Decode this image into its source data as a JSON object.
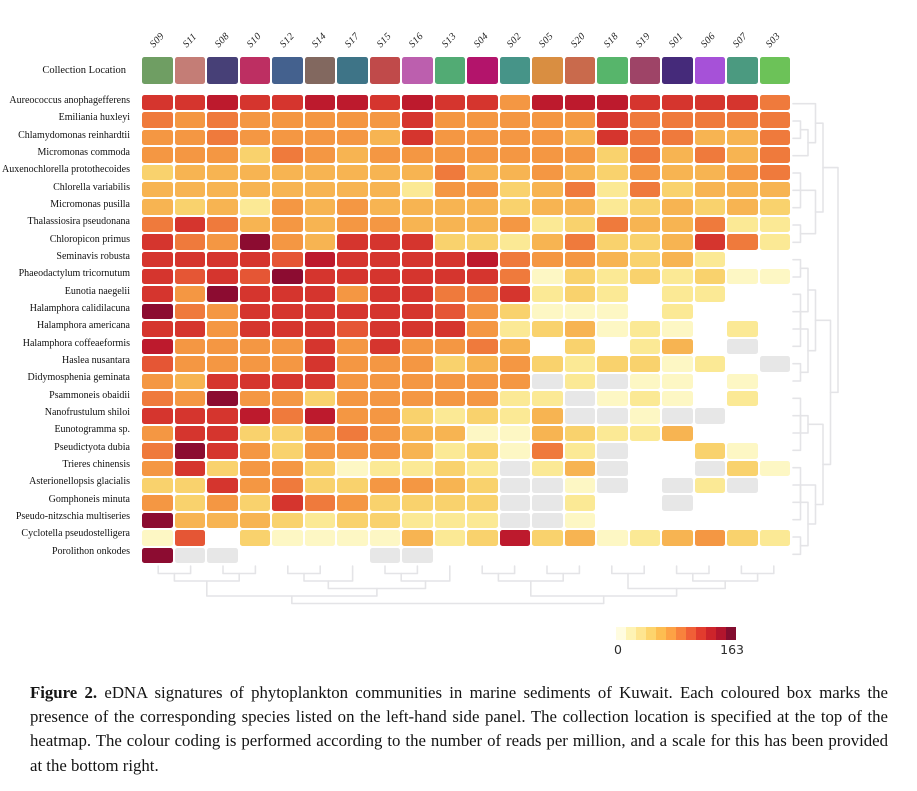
{
  "header": {
    "collection_location_label": "Collection Location",
    "columns": [
      "S09",
      "S11",
      "S08",
      "S10",
      "S12",
      "S14",
      "S17",
      "S15",
      "S16",
      "S13",
      "S04",
      "S02",
      "S05",
      "S20",
      "S18",
      "S19",
      "S01",
      "S06",
      "S07",
      "S03"
    ],
    "column_colors": [
      "#6f9e63",
      "#c47d76",
      "#474077",
      "#bd2f62",
      "#44618e",
      "#82685f",
      "#3e7487",
      "#c04a4a",
      "#bc5fae",
      "#52ab74",
      "#b3146b",
      "#469488",
      "#d98e41",
      "#c96a4c",
      "#57b56b",
      "#9e4467",
      "#452a7a",
      "#a651d8",
      "#4b9a80",
      "#6cc258"
    ]
  },
  "heatmap": {
    "species": [
      "Aureococcus anophagefferens",
      "Emiliania huxleyi",
      "Chlamydomonas reinhardtii",
      "Micromonas commoda",
      "Auxenochlorella protothecoides",
      "Chlorella variabilis",
      "Micromonas pusilla",
      "Thalassiosira pseudonana",
      "Chloropicon primus",
      "Seminavis robusta",
      "Phaeodactylum tricornutum",
      "Eunotia naegelii",
      "Halamphora calidilacuna",
      "Halamphora americana",
      "Halamphora coffeaeformis",
      "Haslea nusantara",
      "Didymosphenia geminata",
      "Psammoneis obaidii",
      "Nanofrustulum shiloi",
      "Eunotogramma sp.",
      "Pseudictyota dubia",
      "Trieres chinensis",
      "Asterionellopsis glacialis",
      "Gomphoneis minuta",
      "Pseudo-nitzschia multiseries",
      "Cyclotella pseudostelligera",
      "Porolithon onkodes"
    ],
    "palette": {
      "0": "#ffffff",
      "1": "#fdf7c4",
      "2": "#fbe995",
      "3": "#f9d26d",
      "4": "#f7b452",
      "5": "#f49743",
      "6": "#ef7a3c",
      "7": "#e55635",
      "8": "#d5352e",
      "9": "#bd1a2d",
      "A": "#8c0c31",
      "G": "#e7e7e7"
    },
    "rows_pattern": [
      "88988998988599988886",
      "65655555855555866666",
      "55655554855554866446",
      "55536545555555364646",
      "34444444464454354456",
      "44444444255346263444",
      "43425454444344234343",
      "68645455444523644622",
      "865A5488833246334862",
      "88887988889655434200",
      "8787A888888613232311",
      "85A88858866823202200",
      "A6588888875311102000",
      "88588878885234121020",
      "955558585564030240G0",
      "7555585553453233120G",
      "548888555555G2G11010",
      "65A5535555522G121020",
      "8889695532324GG1GG00",
      "58833565441143224000",
      "6A853555423162G00310",
      "58355312232G24G00G31",
      "33856335543GG1G0G2G0",
      "53538653333GG200G000",
      "A4443233222GG1000000",
      "17031111423934124532",
      "AGG0000GG00000000000"
    ]
  },
  "dendrograms": {
    "rows_tree": [
      [
        [
          0,
          [
            [
              1,
              2
            ],
            3
          ]
        ],
        [
          [
            [
              4,
              6
            ],
            5
          ],
          [
            7,
            8
          ]
        ]
      ],
      [
        [
          [
            [
              9,
              10
            ],
            [
              11,
              13
            ]
          ],
          [
            [
              12,
              14
            ],
            [
              15,
              16
            ]
          ]
        ],
        [
          [
            [
              17,
              19
            ],
            [
              18,
              20
            ]
          ],
          [
            [
              21,
              23
            ],
            [
              [
                22,
                24
              ],
              [
                25,
                26
              ]
            ]
          ]
        ]
      ]
    ],
    "cols_tree": [
      [
        [
          [
            0,
            1
          ],
          [
            2,
            3
          ]
        ],
        [
          [
            [
              4,
              5
            ],
            6
          ],
          [
            [
              7,
              8
            ],
            9
          ]
        ]
      ],
      [
        [
          [
            10,
            11
          ],
          [
            12,
            13
          ]
        ],
        [
          [
            14,
            15
          ],
          [
            [
              16,
              17
            ],
            [
              18,
              19
            ]
          ]
        ]
      ]
    ]
  },
  "legend": {
    "min": "0",
    "max": "163",
    "colors": [
      "#fffce0",
      "#fef3b4",
      "#fee590",
      "#fdd46c",
      "#fdbd51",
      "#fda245",
      "#f8823d",
      "#f05f37",
      "#e23c2e",
      "#cd242b",
      "#b2152d",
      "#830d2f"
    ]
  },
  "caption": {
    "label": "Figure 2.",
    "text": " eDNA signatures of phytoplankton communities in marine sediments of Kuwait. Each coloured box marks the presence of the corresponding species listed on the left-hand side panel. The collection location is specified at the top of the heatmap. The colour coding is performed according to the number of reads per million, and a scale for this has been provided at the bottom right."
  },
  "chart_data": {
    "type": "heatmap",
    "title": "eDNA signatures of phytoplankton communities in marine sediments of Kuwait",
    "x_categories": [
      "S09",
      "S11",
      "S08",
      "S10",
      "S12",
      "S14",
      "S17",
      "S15",
      "S16",
      "S13",
      "S04",
      "S02",
      "S05",
      "S20",
      "S18",
      "S19",
      "S01",
      "S06",
      "S07",
      "S03"
    ],
    "y_categories": [
      "Aureococcus anophagefferens",
      "Emiliania huxleyi",
      "Chlamydomonas reinhardtii",
      "Micromonas commoda",
      "Auxenochlorella protothecoides",
      "Chlorella variabilis",
      "Micromonas pusilla",
      "Thalassiosira pseudonana",
      "Chloropicon primus",
      "Seminavis robusta",
      "Phaeodactylum tricornutum",
      "Eunotia naegelii",
      "Halamphora calidilacuna",
      "Halamphora americana",
      "Halamphora coffeaeformis",
      "Haslea nusantara",
      "Didymosphenia geminata",
      "Psammoneis obaidii",
      "Nanofrustulum shiloi",
      "Eunotogramma sp.",
      "Pseudictyota dubia",
      "Trieres chinensis",
      "Asterionellopsis glacialis",
      "Gomphoneis minuta",
      "Pseudo-nitzschia multiseries",
      "Cyclotella pseudostelligera",
      "Porolithon onkodes"
    ],
    "value_unit": "reads per million",
    "colorbar_range": [
      0,
      163
    ],
    "bucket_values": {
      "0": 0,
      "1": 8,
      "2": 22,
      "3": 40,
      "4": 55,
      "5": 72,
      "6": 88,
      "7": 102,
      "8": 120,
      "9": 140,
      "A": 160,
      "G": null
    },
    "matrix_buckets": [
      "88988998988599988886",
      "65655555855555866666",
      "55655554855554866446",
      "55536545555555364646",
      "34444444464454354456",
      "44444444255346263444",
      "43425454444344234343",
      "68645455444523644622",
      "865A5488833246334862",
      "88887988889655434200",
      "8787A888888613232311",
      "85A88858866823202200",
      "A6588888875311102000",
      "88588878885234121020",
      "955558585564030240G0",
      "7555585553453233120G",
      "548888555555G2G11010",
      "65A5535555522G121020",
      "8889695532324GG1GG00",
      "58833565441143224000",
      "6A853555423162G00310",
      "58355312232G24G00G31",
      "33856335543GG1G0G2G0",
      "53538653333GG200G000",
      "A4443233222GG1000000",
      "17031111423934124532",
      "AGG0000GG00000000000"
    ],
    "na_color_note": "G = grey cell (no data)",
    "legend_position": "bottom-right",
    "row_dendrogram": "right",
    "column_dendrogram": "bottom"
  }
}
